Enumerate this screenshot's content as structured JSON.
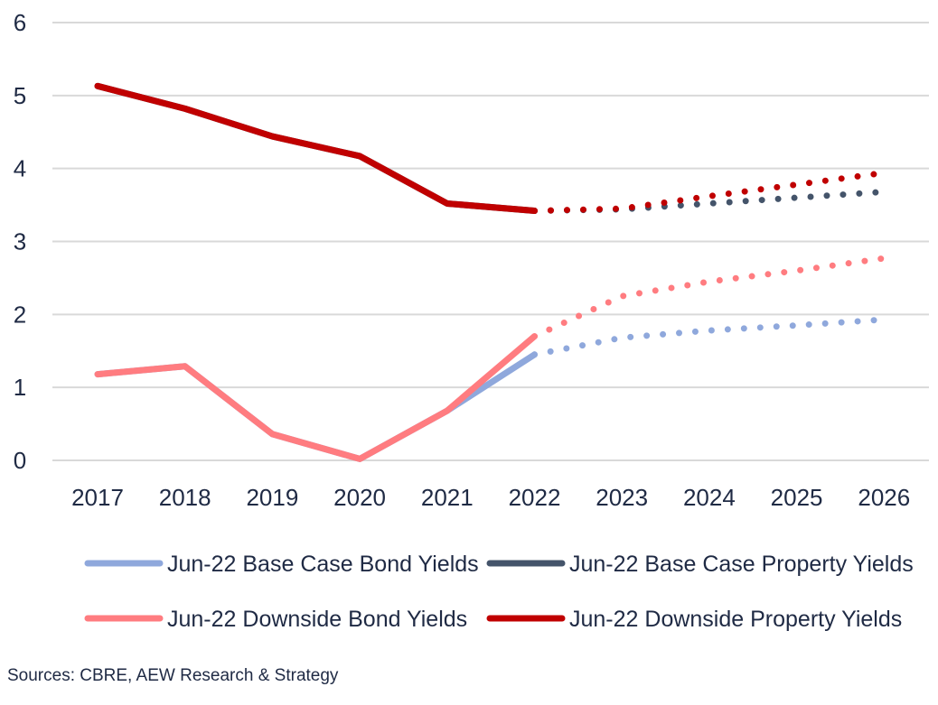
{
  "chart_data": {
    "type": "line",
    "categories": [
      "2017",
      "2018",
      "2019",
      "2020",
      "2021",
      "2022",
      "2023",
      "2024",
      "2025",
      "2026"
    ],
    "y_ticks": [
      "0",
      "1",
      "2",
      "3",
      "4",
      "5",
      "6"
    ],
    "ylim": [
      0,
      6
    ],
    "grid": "horizontal",
    "legend_placement": "bottom",
    "historical_through": "2022",
    "line_style_note": "solid = actual, dotted = forecast",
    "series": [
      {
        "name": "Jun-22 Base Case Bond Yields",
        "color": "#8fa8dc",
        "x": [
          2017,
          2018,
          2019,
          2020,
          2021,
          2022,
          2023,
          2024,
          2025,
          2026
        ],
        "values": [
          1.18,
          1.29,
          0.36,
          0.02,
          0.68,
          1.45,
          1.68,
          1.78,
          1.85,
          1.93
        ]
      },
      {
        "name": "Jun-22 Base Case Property Yields",
        "color": "#44546a",
        "x": [
          2017,
          2018,
          2019,
          2020,
          2021,
          2022,
          2023,
          2024,
          2025,
          2026
        ],
        "values": [
          5.13,
          4.82,
          4.44,
          4.17,
          3.52,
          3.42,
          3.44,
          3.52,
          3.6,
          3.68
        ]
      },
      {
        "name": "Jun-22 Downside Bond Yields",
        "color": "#ff7c80",
        "x": [
          2017,
          2018,
          2019,
          2020,
          2021,
          2022,
          2023,
          2024,
          2025,
          2026
        ],
        "values": [
          1.18,
          1.29,
          0.36,
          0.02,
          0.68,
          1.7,
          2.25,
          2.45,
          2.6,
          2.77
        ]
      },
      {
        "name": "Jun-22 Downside Property Yields",
        "color": "#c00000",
        "x": [
          2017,
          2018,
          2019,
          2020,
          2021,
          2022,
          2023,
          2024,
          2025,
          2026
        ],
        "values": [
          5.13,
          4.82,
          4.44,
          4.17,
          3.52,
          3.42,
          3.45,
          3.62,
          3.78,
          3.94
        ]
      }
    ]
  },
  "source_note": "Sources: CBRE, AEW Research & Strategy"
}
